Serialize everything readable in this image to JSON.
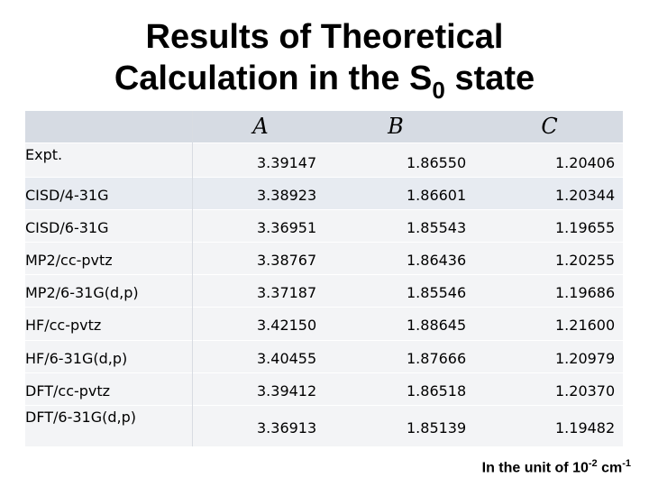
{
  "title": {
    "line1": "Results of Theoretical",
    "line2_prefix": "Calculation   in the S",
    "line2_sub": "0",
    "line2_suffix": " state"
  },
  "table": {
    "columns": [
      "A",
      "B",
      "C"
    ],
    "rows": [
      {
        "method": "Expt.",
        "A": "3.39147",
        "B": "1.86550",
        "C": "1.20406"
      },
      {
        "method": "CISD/4-31G",
        "A": "3.38923",
        "B": "1.86601",
        "C": "1.20344"
      },
      {
        "method": "CISD/6-31G",
        "A": "3.36951",
        "B": "1.85543",
        "C": "1.19655"
      },
      {
        "method": "MP2/cc-pvtz",
        "A": "3.38767",
        "B": "1.86436",
        "C": "1.20255"
      },
      {
        "method": "MP2/6-31G(d,p)",
        "A": "3.37187",
        "B": "1.85546",
        "C": "1.19686"
      },
      {
        "method": "HF/cc-pvtz",
        "A": "3.42150",
        "B": "1.88645",
        "C": "1.21600"
      },
      {
        "method": "HF/6-31G(d,p)",
        "A": "3.40455",
        "B": "1.87666",
        "C": "1.20979"
      },
      {
        "method": "DFT/cc-pvtz",
        "A": "3.39412",
        "B": "1.86518",
        "C": "1.20370"
      },
      {
        "method": "DFT/6-31G(d,p)",
        "A": "3.36913",
        "B": "1.85139",
        "C": "1.19482"
      }
    ]
  },
  "footnote": {
    "prefix": "In the unit of 10",
    "exp": "-2",
    "middle": " cm",
    "exp2": "-1"
  },
  "colors": {
    "header_bg": "#d6dbe3",
    "row_bg": "#f3f4f6",
    "highlight_bg": "#e7ebf1"
  }
}
